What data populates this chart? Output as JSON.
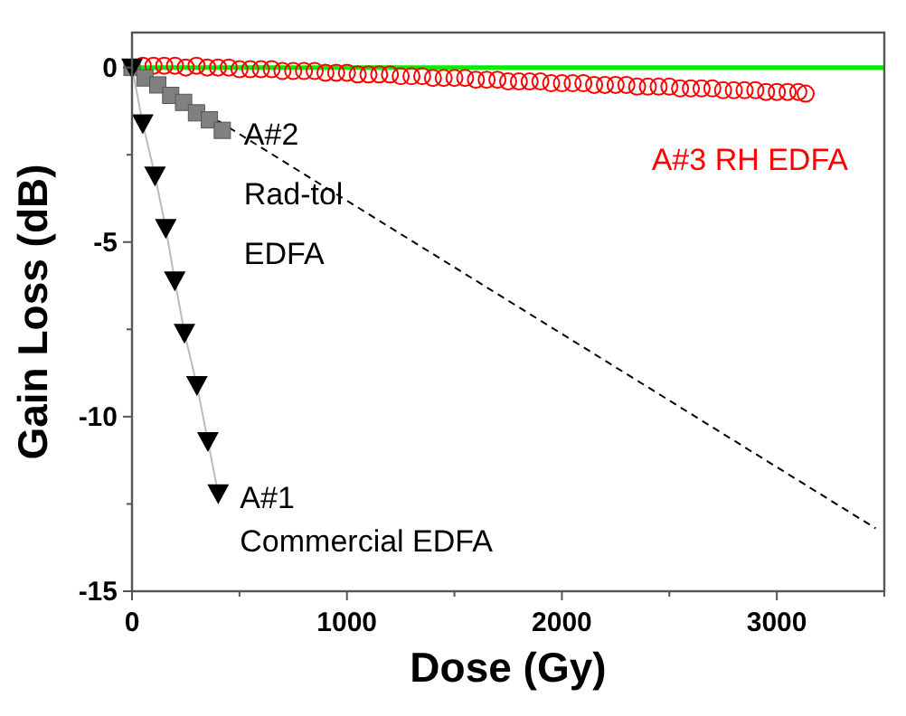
{
  "chart_data": {
    "type": "scatter",
    "xlabel": "Dose (Gy)",
    "ylabel": "Gain Loss (dB)",
    "xlim": [
      0,
      3500
    ],
    "ylim": [
      -15,
      1
    ],
    "xticks": [
      0,
      {
        "value": 500,
        "label": null
      },
      1000,
      {
        "value": 1500,
        "label": null
      },
      2000,
      {
        "value": 2500,
        "label": null
      },
      3000,
      {
        "value": 3500,
        "label": null
      }
    ],
    "yticks": [
      -15,
      {
        "value": -12.5,
        "label": null
      },
      -10,
      {
        "value": -7.5,
        "label": null
      },
      -5,
      {
        "value": -2.5,
        "label": null
      },
      0
    ],
    "grid": false,
    "series": [
      {
        "name": "A#3 RH EDFA",
        "marker": "circle",
        "color": "#ff0000",
        "x": [
          50,
          100,
          150,
          200,
          250,
          300,
          350,
          400,
          450,
          500,
          550,
          600,
          650,
          700,
          750,
          800,
          850,
          900,
          950,
          1000,
          1050,
          1100,
          1150,
          1200,
          1250,
          1300,
          1350,
          1400,
          1450,
          1500,
          1550,
          1600,
          1650,
          1700,
          1750,
          1800,
          1850,
          1900,
          1950,
          2000,
          2050,
          2100,
          2150,
          2200,
          2250,
          2300,
          2350,
          2400,
          2450,
          2500,
          2550,
          2600,
          2650,
          2700,
          2750,
          2800,
          2850,
          2900,
          2950,
          3000,
          3050,
          3100,
          3134
        ],
        "values": [
          0.05,
          0.05,
          0.05,
          0.05,
          0,
          0.05,
          0,
          0,
          0,
          -0.05,
          -0.05,
          -0.05,
          -0.05,
          -0.1,
          -0.1,
          -0.1,
          -0.1,
          -0.15,
          -0.15,
          -0.15,
          -0.2,
          -0.2,
          -0.2,
          -0.2,
          -0.25,
          -0.25,
          -0.25,
          -0.3,
          -0.3,
          -0.3,
          -0.3,
          -0.35,
          -0.35,
          -0.35,
          -0.4,
          -0.4,
          -0.4,
          -0.4,
          -0.45,
          -0.45,
          -0.45,
          -0.45,
          -0.5,
          -0.5,
          -0.5,
          -0.5,
          -0.55,
          -0.55,
          -0.55,
          -0.55,
          -0.6,
          -0.6,
          -0.6,
          -0.6,
          -0.65,
          -0.65,
          -0.65,
          -0.65,
          -0.7,
          -0.7,
          -0.7,
          -0.7,
          -0.75
        ]
      },
      {
        "type": "line",
        "line_style": "dashed",
        "color": "#000000",
        "x": [
          0,
          3460
        ],
        "values": [
          0,
          -13.2
        ]
      },
      {
        "name": "A#2\nRad-tol\nEDFA",
        "marker": "square",
        "color": "#808080",
        "x": [
          0,
          60,
          120,
          180,
          240,
          300,
          360,
          420
        ],
        "values": [
          0,
          -0.3,
          -0.5,
          -0.8,
          -1,
          -1.3,
          -1.5,
          -1.8
        ]
      },
      {
        "name": "A#1\nCommercial EDFA",
        "type": "line",
        "marker": "triangle",
        "color": "#000000",
        "x": [
          0,
          50,
          107,
          157,
          199,
          244,
          302,
          353,
          401
        ],
        "values": [
          0,
          -1.6,
          -3.1,
          -4.6,
          -6.1,
          -7.6,
          -9.1,
          -10.7,
          -12.2
        ]
      }
    ],
    "ref_lines": [
      {
        "axis": "y",
        "value": 0,
        "color": "#00ee00"
      }
    ]
  }
}
